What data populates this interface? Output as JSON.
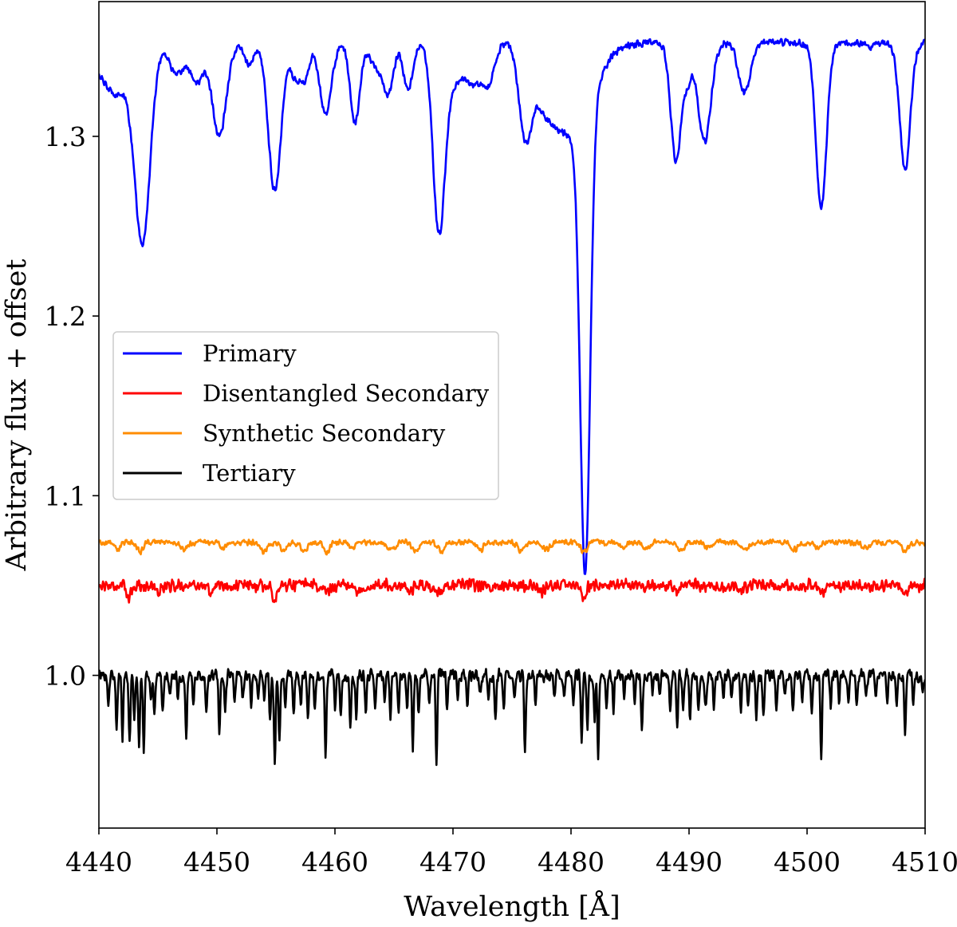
{
  "chart_data": {
    "type": "line",
    "title": "",
    "xlabel": "Wavelength [Å]",
    "ylabel": "Arbitrary flux + offset",
    "xlim": [
      4440,
      4510
    ],
    "ylim": [
      0.915,
      1.375
    ],
    "xticks": [
      4440,
      4450,
      4460,
      4470,
      4480,
      4490,
      4500,
      4510
    ],
    "xtick_labels": [
      "4440",
      "4450",
      "4460",
      "4470",
      "4480",
      "4490",
      "4500",
      "4510"
    ],
    "yticks": [
      1.0,
      1.1,
      1.2,
      1.3
    ],
    "ytick_labels": [
      "1.0",
      "1.1",
      "1.2",
      "1.3"
    ],
    "legend_position": "center-left",
    "series": [
      {
        "name": "Primary",
        "color": "#0000ff",
        "continuum": 1.352,
        "noise": 0.0015,
        "lines": [
          [
            4441.4,
            0.028,
            1.4
          ],
          [
            4443.7,
            0.105,
            0.65
          ],
          [
            4446.6,
            0.018,
            0.6
          ],
          [
            4448.3,
            0.022,
            0.55
          ],
          [
            4450.2,
            0.052,
            0.6
          ],
          [
            4452.7,
            0.012,
            0.4
          ],
          [
            4454.9,
            0.082,
            0.55
          ],
          [
            4456.7,
            0.02,
            0.4
          ],
          [
            4457.5,
            0.018,
            0.35
          ],
          [
            4459.2,
            0.04,
            0.5
          ],
          [
            4461.7,
            0.044,
            0.4
          ],
          [
            4463.4,
            0.012,
            0.5
          ],
          [
            4464.5,
            0.028,
            0.45
          ],
          [
            4466.2,
            0.026,
            0.4
          ],
          [
            4468.8,
            0.096,
            0.5
          ],
          [
            4470.0,
            0.022,
            1.0
          ],
          [
            4471.8,
            0.018,
            0.6
          ],
          [
            4473.0,
            0.022,
            0.5
          ],
          [
            4476.1,
            0.044,
            0.5
          ],
          [
            4477.5,
            0.018,
            1.0
          ],
          [
            4481.2,
            0.255,
            0.42
          ],
          [
            4480.0,
            0.05,
            1.8
          ],
          [
            4488.9,
            0.066,
            0.45
          ],
          [
            4489.9,
            0.018,
            0.3
          ],
          [
            4491.3,
            0.055,
            0.55
          ],
          [
            4494.7,
            0.028,
            0.5
          ],
          [
            4501.2,
            0.092,
            0.45
          ],
          [
            4508.3,
            0.07,
            0.45
          ],
          [
            4505.3,
            0.003,
            0.3
          ]
        ]
      },
      {
        "name": "Disentangled Secondary",
        "color": "#ff0000",
        "continuum": 1.05,
        "noise": 0.0025,
        "lines": [
          [
            4442.5,
            0.006,
            0.2
          ],
          [
            4445.0,
            0.004,
            0.2
          ],
          [
            4449.5,
            0.004,
            0.2
          ],
          [
            4454.9,
            0.007,
            0.2
          ],
          [
            4459.3,
            0.005,
            0.2
          ],
          [
            4462.0,
            0.004,
            0.2
          ],
          [
            4466.3,
            0.004,
            0.2
          ],
          [
            4468.8,
            0.005,
            0.2
          ],
          [
            4477.5,
            0.004,
            0.2
          ],
          [
            4481.0,
            0.006,
            0.2
          ],
          [
            4488.9,
            0.004,
            0.2
          ],
          [
            4494.3,
            0.004,
            0.2
          ],
          [
            4501.2,
            0.005,
            0.2
          ],
          [
            4508.3,
            0.005,
            0.2
          ]
        ]
      },
      {
        "name": "Synthetic Secondary",
        "color": "#ff8c00",
        "continuum": 1.074,
        "noise": 0.0012,
        "lines": [
          [
            4441.6,
            0.004,
            0.25
          ],
          [
            4443.5,
            0.005,
            0.25
          ],
          [
            4447.2,
            0.004,
            0.3
          ],
          [
            4450.5,
            0.003,
            0.25
          ],
          [
            4454.0,
            0.005,
            0.3
          ],
          [
            4455.7,
            0.004,
            0.3
          ],
          [
            4457.4,
            0.005,
            0.3
          ],
          [
            4459.3,
            0.006,
            0.25
          ],
          [
            4461.5,
            0.003,
            0.25
          ],
          [
            4464.8,
            0.004,
            0.3
          ],
          [
            4466.8,
            0.004,
            0.3
          ],
          [
            4469.0,
            0.005,
            0.3
          ],
          [
            4472.3,
            0.004,
            0.3
          ],
          [
            4475.8,
            0.005,
            0.3
          ],
          [
            4477.9,
            0.004,
            0.3
          ],
          [
            4481.1,
            0.005,
            0.3
          ],
          [
            4484.3,
            0.003,
            0.3
          ],
          [
            4486.3,
            0.004,
            0.3
          ],
          [
            4489.3,
            0.004,
            0.3
          ],
          [
            4491.6,
            0.003,
            0.3
          ],
          [
            4494.7,
            0.004,
            0.3
          ],
          [
            4498.9,
            0.004,
            0.3
          ],
          [
            4500.9,
            0.003,
            0.3
          ],
          [
            4505.0,
            0.003,
            0.3
          ],
          [
            4508.3,
            0.004,
            0.3
          ]
        ]
      },
      {
        "name": "Tertiary",
        "color": "#000000",
        "continuum": 1.0,
        "noise": 0.0025,
        "lines": [
          [
            4440.8,
            0.018,
            0.07
          ],
          [
            4441.5,
            0.03,
            0.07
          ],
          [
            4442.0,
            0.035,
            0.07
          ],
          [
            4442.6,
            0.038,
            0.07
          ],
          [
            4443.0,
            0.025,
            0.07
          ],
          [
            4443.4,
            0.04,
            0.07
          ],
          [
            4443.8,
            0.045,
            0.07
          ],
          [
            4444.4,
            0.015,
            0.07
          ],
          [
            4444.7,
            0.022,
            0.07
          ],
          [
            4445.4,
            0.02,
            0.07
          ],
          [
            4446.0,
            0.012,
            0.07
          ],
          [
            4446.7,
            0.015,
            0.07
          ],
          [
            4447.4,
            0.036,
            0.07
          ],
          [
            4448.0,
            0.018,
            0.07
          ],
          [
            4449.1,
            0.02,
            0.07
          ],
          [
            4450.2,
            0.03,
            0.07
          ],
          [
            4450.7,
            0.02,
            0.07
          ],
          [
            4451.5,
            0.018,
            0.07
          ],
          [
            4452.2,
            0.012,
            0.07
          ],
          [
            4452.9,
            0.015,
            0.07
          ],
          [
            4453.5,
            0.012,
            0.07
          ],
          [
            4454.0,
            0.015,
            0.07
          ],
          [
            4454.5,
            0.025,
            0.07
          ],
          [
            4454.9,
            0.048,
            0.07
          ],
          [
            4455.3,
            0.035,
            0.07
          ],
          [
            4455.8,
            0.02,
            0.07
          ],
          [
            4456.5,
            0.022,
            0.07
          ],
          [
            4457.1,
            0.018,
            0.07
          ],
          [
            4457.7,
            0.025,
            0.07
          ],
          [
            4458.3,
            0.02,
            0.07
          ],
          [
            4459.2,
            0.045,
            0.07
          ],
          [
            4460.0,
            0.018,
            0.07
          ],
          [
            4460.5,
            0.022,
            0.07
          ],
          [
            4461.3,
            0.028,
            0.07
          ],
          [
            4461.8,
            0.022,
            0.07
          ],
          [
            4462.6,
            0.02,
            0.07
          ],
          [
            4463.4,
            0.018,
            0.07
          ],
          [
            4464.2,
            0.015,
            0.07
          ],
          [
            4464.7,
            0.025,
            0.07
          ],
          [
            4465.4,
            0.02,
            0.07
          ],
          [
            4466.1,
            0.018,
            0.07
          ],
          [
            4466.6,
            0.04,
            0.07
          ],
          [
            4467.1,
            0.022,
            0.07
          ],
          [
            4468.0,
            0.015,
            0.07
          ],
          [
            4468.6,
            0.048,
            0.07
          ],
          [
            4469.5,
            0.018,
            0.07
          ],
          [
            4470.4,
            0.015,
            0.07
          ],
          [
            4471.2,
            0.018,
            0.07
          ],
          [
            4472.3,
            0.012,
            0.07
          ],
          [
            4473.0,
            0.01,
            0.07
          ],
          [
            4473.6,
            0.025,
            0.07
          ],
          [
            4474.3,
            0.018,
            0.07
          ],
          [
            4475.2,
            0.015,
            0.07
          ],
          [
            4476.1,
            0.045,
            0.07
          ],
          [
            4477.0,
            0.018,
            0.07
          ],
          [
            4478.6,
            0.01,
            0.07
          ],
          [
            4479.4,
            0.012,
            0.07
          ],
          [
            4480.2,
            0.015,
            0.07
          ],
          [
            4480.9,
            0.035,
            0.07
          ],
          [
            4481.4,
            0.028,
            0.07
          ],
          [
            4482.0,
            0.025,
            0.07
          ],
          [
            4482.3,
            0.045,
            0.07
          ],
          [
            4483.0,
            0.02,
            0.07
          ],
          [
            4483.6,
            0.018,
            0.07
          ],
          [
            4484.5,
            0.012,
            0.07
          ],
          [
            4485.4,
            0.015,
            0.07
          ],
          [
            4486.0,
            0.03,
            0.07
          ],
          [
            4486.9,
            0.01,
            0.07
          ],
          [
            4487.5,
            0.012,
            0.07
          ],
          [
            4488.4,
            0.018,
            0.07
          ],
          [
            4489.0,
            0.03,
            0.07
          ],
          [
            4489.5,
            0.022,
            0.07
          ],
          [
            4490.1,
            0.025,
            0.07
          ],
          [
            4490.8,
            0.02,
            0.07
          ],
          [
            4491.4,
            0.02,
            0.07
          ],
          [
            4492.1,
            0.018,
            0.07
          ],
          [
            4492.9,
            0.015,
            0.07
          ],
          [
            4493.6,
            0.012,
            0.07
          ],
          [
            4494.4,
            0.018,
            0.07
          ],
          [
            4495.0,
            0.015,
            0.07
          ],
          [
            4495.7,
            0.022,
            0.07
          ],
          [
            4496.3,
            0.025,
            0.07
          ],
          [
            4497.4,
            0.018,
            0.07
          ],
          [
            4498.1,
            0.012,
            0.07
          ],
          [
            4498.8,
            0.02,
            0.07
          ],
          [
            4499.6,
            0.015,
            0.07
          ],
          [
            4500.4,
            0.018,
            0.07
          ],
          [
            4501.2,
            0.048,
            0.07
          ],
          [
            4502.0,
            0.018,
            0.07
          ],
          [
            4502.7,
            0.015,
            0.07
          ],
          [
            4503.5,
            0.012,
            0.07
          ],
          [
            4504.2,
            0.018,
            0.07
          ],
          [
            4505.0,
            0.015,
            0.07
          ],
          [
            4505.8,
            0.012,
            0.07
          ],
          [
            4506.8,
            0.015,
            0.07
          ],
          [
            4507.6,
            0.018,
            0.07
          ],
          [
            4508.3,
            0.034,
            0.07
          ],
          [
            4509.0,
            0.015,
            0.07
          ],
          [
            4509.8,
            0.01,
            0.07
          ]
        ]
      }
    ]
  }
}
